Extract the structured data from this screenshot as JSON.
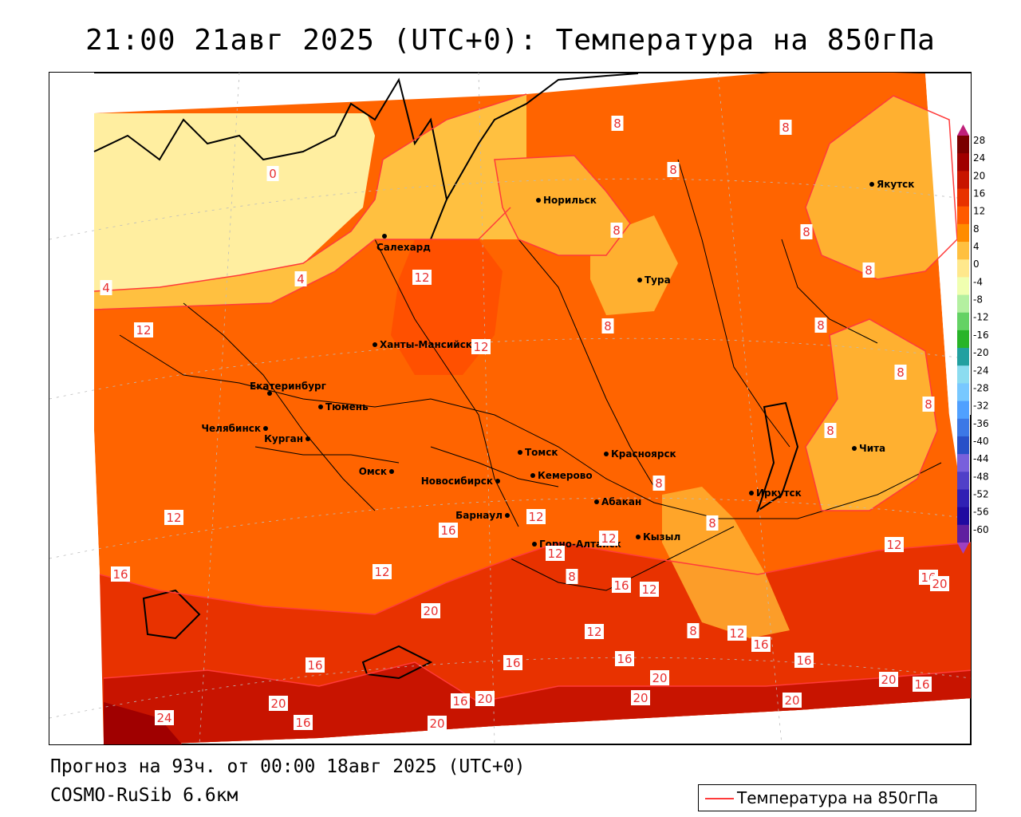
{
  "title": "21:00 21авг 2025 (UTC+0): Температура на 850гПа",
  "footer": {
    "forecast": "Прогноз на 93ч. от 00:00 18авг 2025 (UTC+0)",
    "model": "COSMO-RuSib 6.6км"
  },
  "legend": {
    "label": "Температура на 850гПа",
    "line_color": "#ff3b3b"
  },
  "colorbar": {
    "ticks": [
      "28",
      "24",
      "20",
      "16",
      "12",
      "8",
      "4",
      "0",
      "-4",
      "-8",
      "-12",
      "-16",
      "-20",
      "-24",
      "-28",
      "-32",
      "-36",
      "-40",
      "-44",
      "-48",
      "-52",
      "-56",
      "-60"
    ],
    "colors": [
      "#7a0000",
      "#a00000",
      "#c81400",
      "#e83200",
      "#ff5a00",
      "#ff8c00",
      "#ffc040",
      "#ffe88c",
      "#f0ffb0",
      "#b4f0a0",
      "#64d264",
      "#28b428",
      "#22a0a0",
      "#8cdcf0",
      "#78c8ff",
      "#50a0ff",
      "#3c78e6",
      "#2850c8",
      "#7860dc",
      "#5040c8",
      "#3020b4",
      "#200aa0",
      "#6020a0"
    ]
  },
  "cities": [
    {
      "name": "Норильск"
    },
    {
      "name": "Якутск"
    },
    {
      "name": "Салехард"
    },
    {
      "name": "Тура"
    },
    {
      "name": "Ханты-Мансийск"
    },
    {
      "name": "Екатеринбург"
    },
    {
      "name": "Тюмень"
    },
    {
      "name": "Челябинск"
    },
    {
      "name": "Курган"
    },
    {
      "name": "Омск"
    },
    {
      "name": "Новосибирск"
    },
    {
      "name": "Томск"
    },
    {
      "name": "Красноярск"
    },
    {
      "name": "Кемерово"
    },
    {
      "name": "Абакан"
    },
    {
      "name": "Иркутск"
    },
    {
      "name": "Чита"
    },
    {
      "name": "Барнаул"
    },
    {
      "name": "Горно-Алтайск"
    },
    {
      "name": "Кызыл"
    }
  ],
  "contour_labels": [
    "0",
    "4",
    "4",
    "8",
    "8",
    "8",
    "8",
    "8",
    "8",
    "8",
    "8",
    "8",
    "8",
    "8",
    "8",
    "8",
    "8",
    "8",
    "12",
    "12",
    "12",
    "12",
    "12",
    "12",
    "12",
    "12",
    "12",
    "12",
    "12",
    "12",
    "16",
    "16",
    "16",
    "16",
    "16",
    "16",
    "16",
    "16",
    "16",
    "16",
    "16",
    "16",
    "20",
    "20",
    "20",
    "20",
    "20",
    "20",
    "20",
    "20",
    "20",
    "24"
  ]
}
